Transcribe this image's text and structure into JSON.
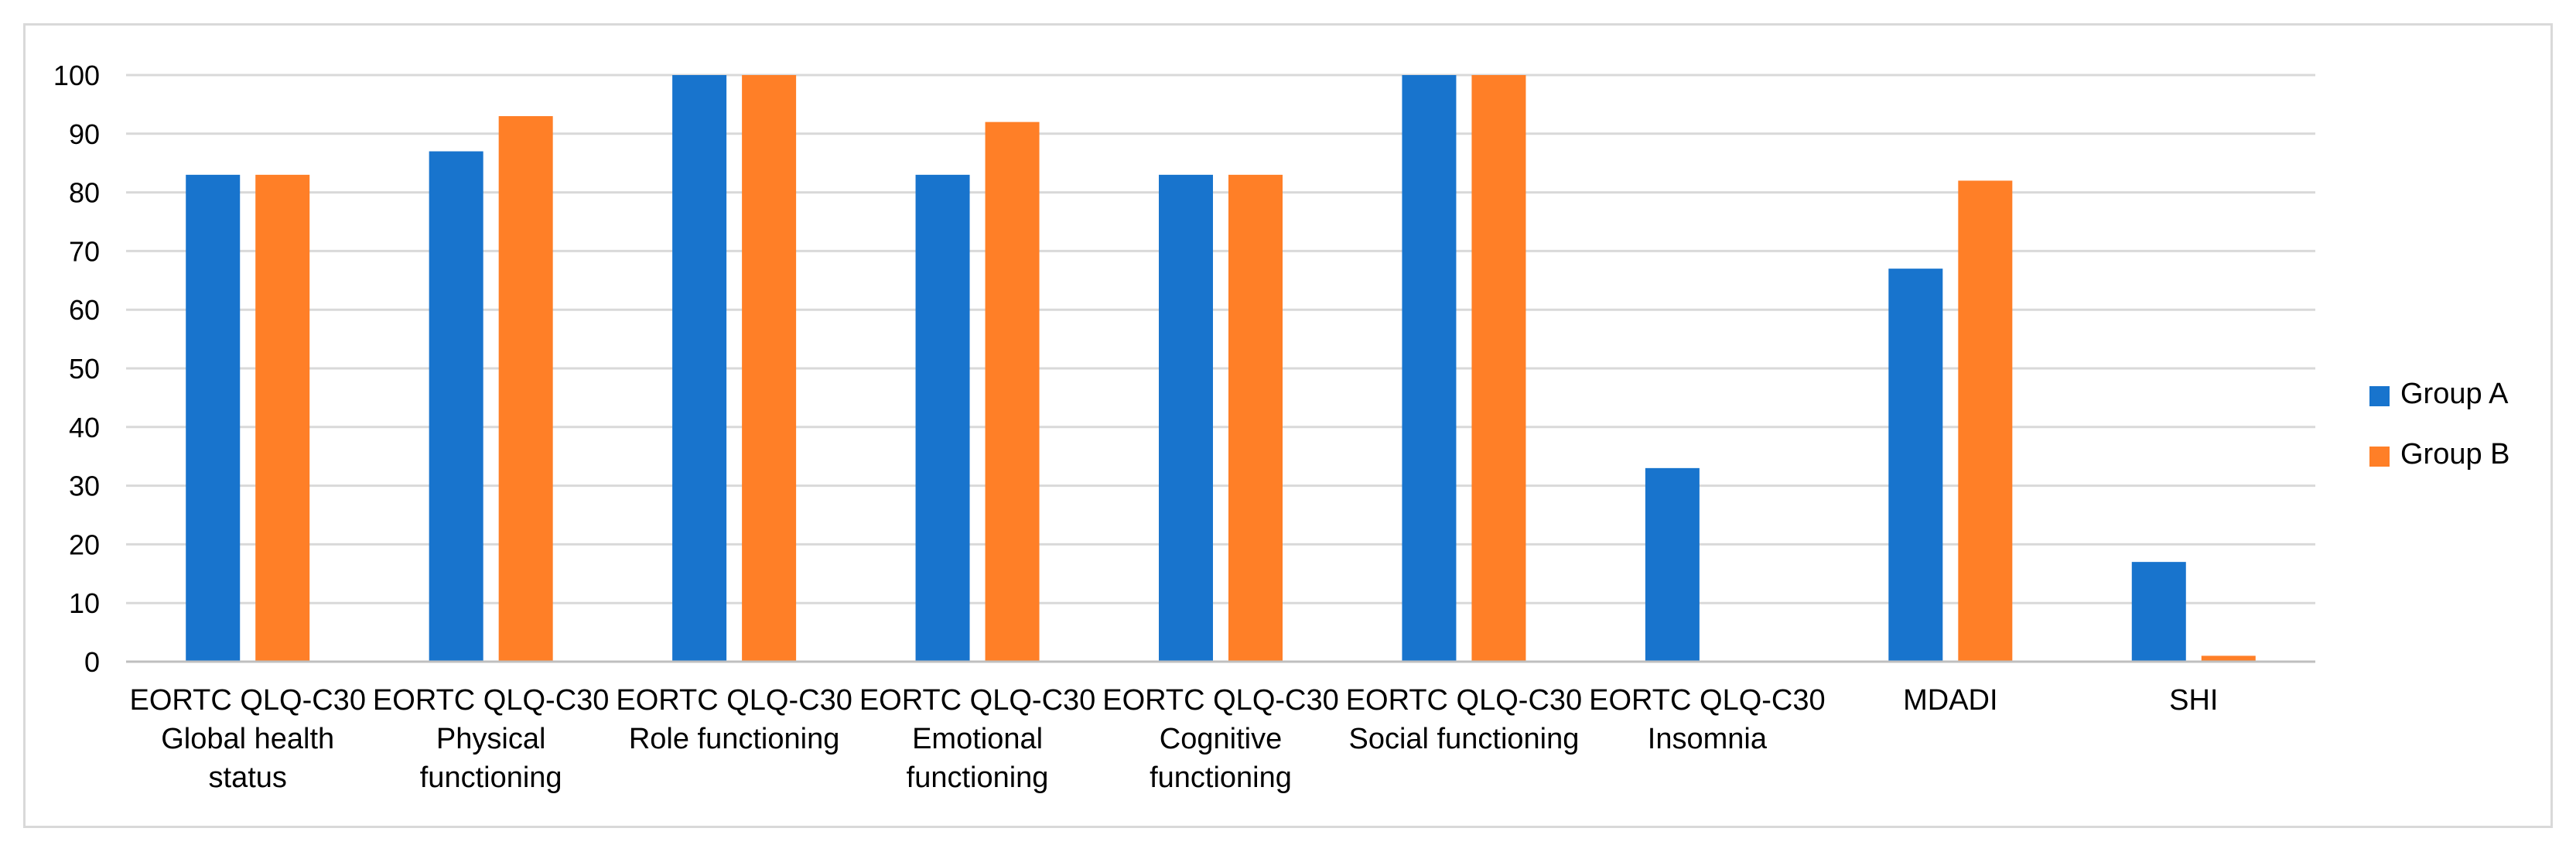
{
  "chart_data": {
    "type": "bar",
    "title": "",
    "xlabel": "",
    "ylabel": "",
    "ylim": [
      0,
      100
    ],
    "yticks": [
      0,
      10,
      20,
      30,
      40,
      50,
      60,
      70,
      80,
      90,
      100
    ],
    "grid": true,
    "legend_position": "right",
    "categories": [
      [
        "EORTC QLQ-C30",
        "Global health",
        "status"
      ],
      [
        "EORTC QLQ-C30",
        "Physical",
        "functioning"
      ],
      [
        "EORTC QLQ-C30",
        "Role functioning"
      ],
      [
        "EORTC QLQ-C30",
        "Emotional",
        "functioning"
      ],
      [
        "EORTC QLQ-C30",
        "Cognitive",
        "functioning"
      ],
      [
        "EORTC QLQ-C30",
        "Social functioning"
      ],
      [
        "EORTC QLQ-C30",
        "Insomnia"
      ],
      [
        "MDADI"
      ],
      [
        "SHI"
      ]
    ],
    "series": [
      {
        "name": "Group A",
        "color": "#1874CD",
        "values": [
          83,
          87,
          100,
          83,
          83,
          100,
          33,
          67,
          17
        ]
      },
      {
        "name": "Group B",
        "color": "#FF7F27",
        "values": [
          83,
          93,
          100,
          92,
          83,
          100,
          0,
          82,
          1
        ]
      }
    ]
  }
}
